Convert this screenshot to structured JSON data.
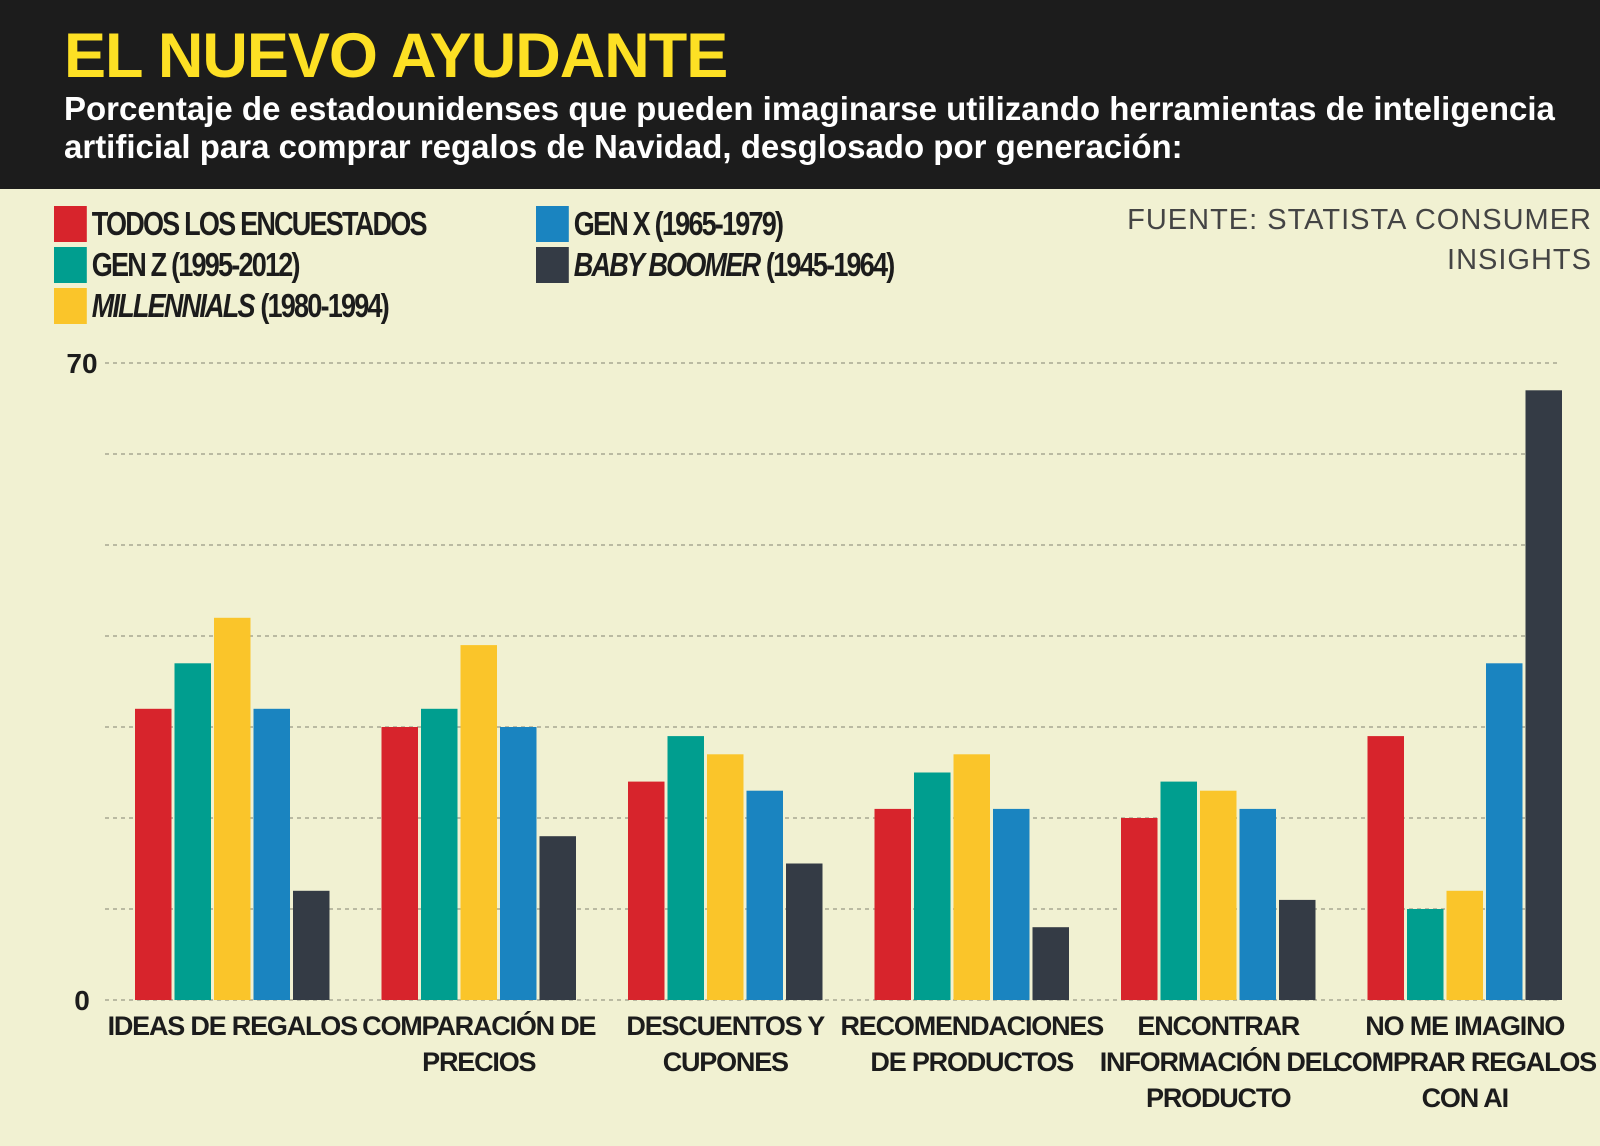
{
  "header": {
    "title": "EL NUEVO AYUDANTE",
    "subtitle": "Porcentaje de estadounidenses que pueden imaginarse utilizando herramientas de inteligencia artificial para comprar regalos de Navidad, desglosado por generación:"
  },
  "source": "FUENTE: STATISTA CONSUMER INSIGHTS",
  "legend": [
    {
      "italic": "",
      "text": "TODOS LOS ENCUESTADOS",
      "color": "#d7242c"
    },
    {
      "italic": "",
      "text": "GEN Z (1995-2012)",
      "color": "#009e8f"
    },
    {
      "italic": "MILLENNIALS",
      "text": "(1980-1994)",
      "color": "#fac52a"
    },
    {
      "italic": "",
      "text": "GEN X (1965-1979)",
      "color": "#1a84c0"
    },
    {
      "italic": "BABY BOOMER",
      "text": "(1945-1964)",
      "color": "#343b45"
    }
  ],
  "chart_data": {
    "type": "bar",
    "categories": [
      [
        "IDEAS DE REGALOS"
      ],
      [
        "COMPARACIÓN DE",
        "PRECIOS"
      ],
      [
        "DESCUENTOS Y",
        "CUPONES"
      ],
      [
        "RECOMENDACIONES",
        "DE PRODUCTOS"
      ],
      [
        "ENCONTRAR",
        "INFORMACIÓN DEL",
        "PRODUCTO"
      ],
      [
        "NO ME IMAGINO",
        "COMPRAR REGALOS",
        "CON AI"
      ]
    ],
    "series": [
      {
        "name": "TODOS LOS ENCUESTADOS",
        "color": "#d7242c",
        "values": [
          32,
          30,
          24,
          21,
          20,
          29
        ]
      },
      {
        "name": "GEN Z (1995-2012)",
        "color": "#009e8f",
        "values": [
          37,
          32,
          29,
          25,
          24,
          10
        ]
      },
      {
        "name": "MILLENNIALS (1980-1994)",
        "color": "#fac52a",
        "values": [
          42,
          39,
          27,
          27,
          23,
          12
        ]
      },
      {
        "name": "GEN X (1965-1979)",
        "color": "#1a84c0",
        "values": [
          32,
          30,
          23,
          21,
          21,
          37
        ]
      },
      {
        "name": "BABY BOOMER (1945-1964)",
        "color": "#343b45",
        "values": [
          12,
          18,
          15,
          8,
          11,
          67
        ]
      }
    ],
    "ylim": [
      0,
      70
    ],
    "yticks_labeled": [
      "0",
      "70"
    ],
    "grid": true
  }
}
